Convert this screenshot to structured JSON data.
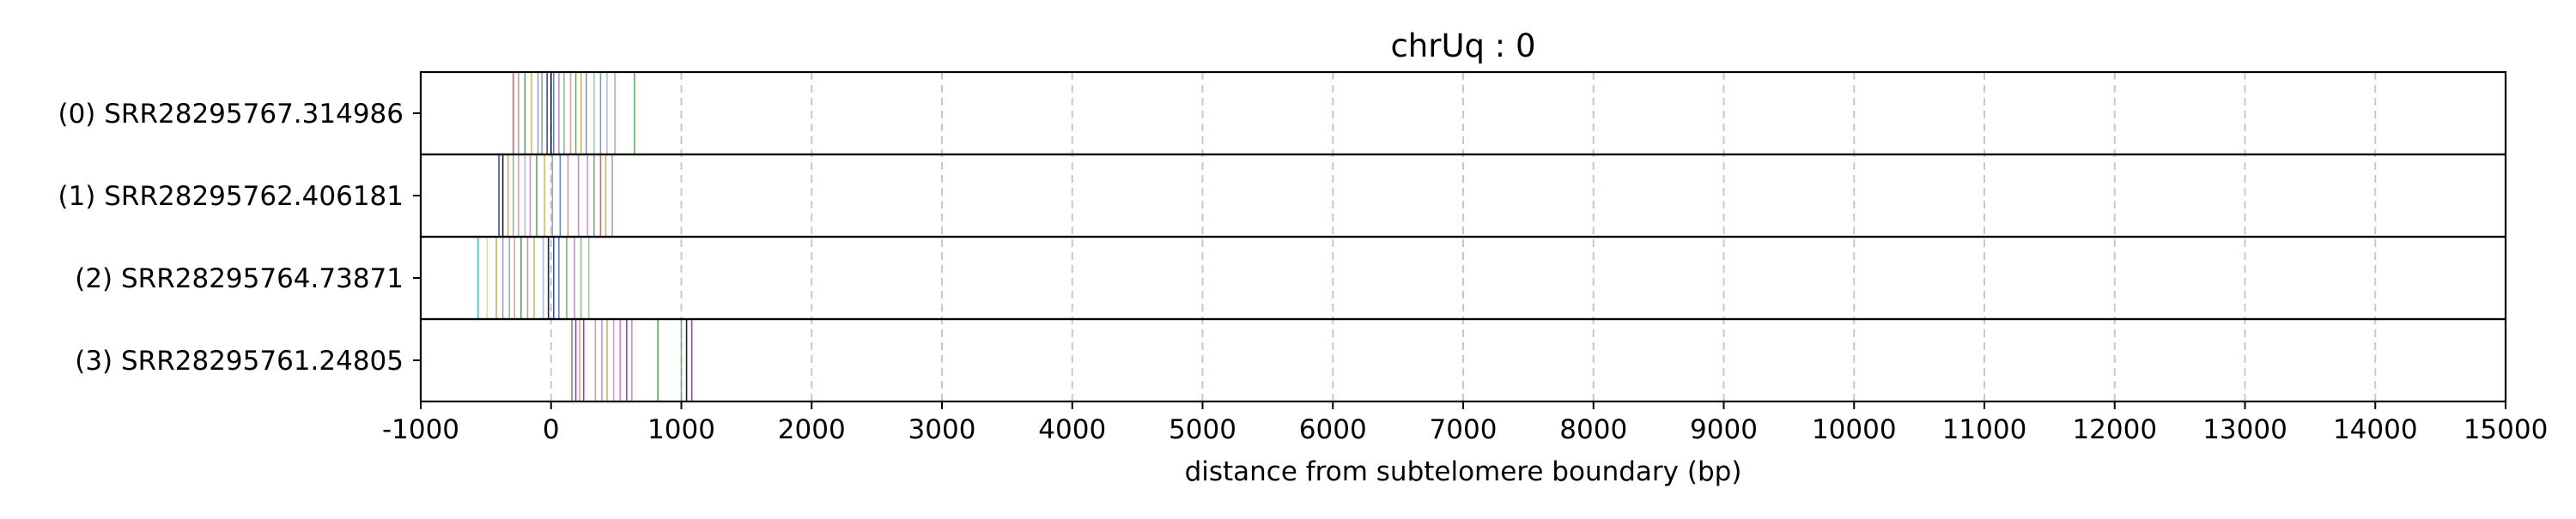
{
  "chart_data": {
    "type": "read_track",
    "title": "chrUq : 0",
    "xlabel": "distance from subtelomere boundary (bp)",
    "ylabel": "",
    "xlim": [
      -1000,
      15000
    ],
    "xticks": [
      -1000,
      0,
      1000,
      2000,
      3000,
      4000,
      5000,
      6000,
      7000,
      8000,
      9000,
      10000,
      11000,
      12000,
      13000,
      14000,
      15000
    ],
    "xtick_labels": [
      "-1000",
      "0",
      "1000",
      "2000",
      "3000",
      "4000",
      "5000",
      "6000",
      "7000",
      "8000",
      "9000",
      "10000",
      "11000",
      "12000",
      "13000",
      "14000",
      "15000"
    ],
    "grid": "vertical dashed at ticks",
    "rows": [
      {
        "label": "(0) SRR28295767.314986",
        "marks": [
          {
            "x": -290,
            "color": "#e06060"
          },
          {
            "x": -250,
            "color": "#c8a0a0"
          },
          {
            "x": -200,
            "color": "#60a060"
          },
          {
            "x": -150,
            "color": "#d0c060"
          },
          {
            "x": -100,
            "color": "#a0a0d0"
          },
          {
            "x": -70,
            "color": "#80b080"
          },
          {
            "x": -30,
            "color": "#3050c0"
          },
          {
            "x": 0,
            "color": "#202020"
          },
          {
            "x": 20,
            "color": "#6080e0"
          },
          {
            "x": 60,
            "color": "#c090d0"
          },
          {
            "x": 100,
            "color": "#90c090"
          },
          {
            "x": 150,
            "color": "#e0a0a0"
          },
          {
            "x": 190,
            "color": "#70b070"
          },
          {
            "x": 230,
            "color": "#d0b060"
          },
          {
            "x": 270,
            "color": "#9090c0"
          },
          {
            "x": 330,
            "color": "#a0d0a0"
          },
          {
            "x": 380,
            "color": "#70a0e0"
          },
          {
            "x": 430,
            "color": "#b0c0e0"
          },
          {
            "x": 490,
            "color": "#c0a0e0"
          },
          {
            "x": 640,
            "color": "#60b060"
          }
        ]
      },
      {
        "label": "(1) SRR28295762.406181",
        "marks": [
          {
            "x": -400,
            "color": "#3050c0"
          },
          {
            "x": -370,
            "color": "#202020"
          },
          {
            "x": -330,
            "color": "#d0b060"
          },
          {
            "x": -290,
            "color": "#90c090"
          },
          {
            "x": -250,
            "color": "#e0a0a0"
          },
          {
            "x": -200,
            "color": "#a0c0e0"
          },
          {
            "x": -160,
            "color": "#c090d0"
          },
          {
            "x": -110,
            "color": "#60a060"
          },
          {
            "x": -50,
            "color": "#d0c060"
          },
          {
            "x": 10,
            "color": "#a0a0d0"
          },
          {
            "x": 70,
            "color": "#6080e0"
          },
          {
            "x": 130,
            "color": "#c8a0a0"
          },
          {
            "x": 210,
            "color": "#e080c0"
          },
          {
            "x": 280,
            "color": "#c0a0e0"
          },
          {
            "x": 330,
            "color": "#80b080"
          },
          {
            "x": 380,
            "color": "#e06060"
          },
          {
            "x": 420,
            "color": "#d0b060"
          },
          {
            "x": 470,
            "color": "#c090d0"
          }
        ]
      },
      {
        "label": "(2) SRR28295764.73871",
        "marks": [
          {
            "x": -560,
            "color": "#40c0c0"
          },
          {
            "x": -490,
            "color": "#e0e090"
          },
          {
            "x": -420,
            "color": "#d0b060"
          },
          {
            "x": -370,
            "color": "#a0a0d0"
          },
          {
            "x": -320,
            "color": "#90c090"
          },
          {
            "x": -280,
            "color": "#e0a0a0"
          },
          {
            "x": -230,
            "color": "#60a060"
          },
          {
            "x": -180,
            "color": "#c8a0a0"
          },
          {
            "x": -130,
            "color": "#d0c060"
          },
          {
            "x": -60,
            "color": "#a0c0e0"
          },
          {
            "x": -20,
            "color": "#202020"
          },
          {
            "x": 20,
            "color": "#3050c0"
          },
          {
            "x": 60,
            "color": "#6080e0"
          },
          {
            "x": 120,
            "color": "#80b080"
          },
          {
            "x": 180,
            "color": "#c090d0"
          },
          {
            "x": 230,
            "color": "#90c090"
          },
          {
            "x": 290,
            "color": "#a0d0a0"
          }
        ]
      },
      {
        "label": "(3) SRR28295761.24805",
        "marks": [
          {
            "x": 160,
            "color": "#60a060"
          },
          {
            "x": 190,
            "color": "#9040c0"
          },
          {
            "x": 220,
            "color": "#d0b060"
          },
          {
            "x": 250,
            "color": "#9040c0"
          },
          {
            "x": 340,
            "color": "#e0a0a0"
          },
          {
            "x": 390,
            "color": "#c090d0"
          },
          {
            "x": 430,
            "color": "#d0b060"
          },
          {
            "x": 480,
            "color": "#c0a0e0"
          },
          {
            "x": 530,
            "color": "#e080c0"
          },
          {
            "x": 580,
            "color": "#9040c0"
          },
          {
            "x": 620,
            "color": "#c090d0"
          },
          {
            "x": 820,
            "color": "#60a060"
          },
          {
            "x": 1000,
            "color": "#70b070"
          },
          {
            "x": 1040,
            "color": "#202020"
          },
          {
            "x": 1080,
            "color": "#9040c0"
          }
        ]
      }
    ]
  }
}
